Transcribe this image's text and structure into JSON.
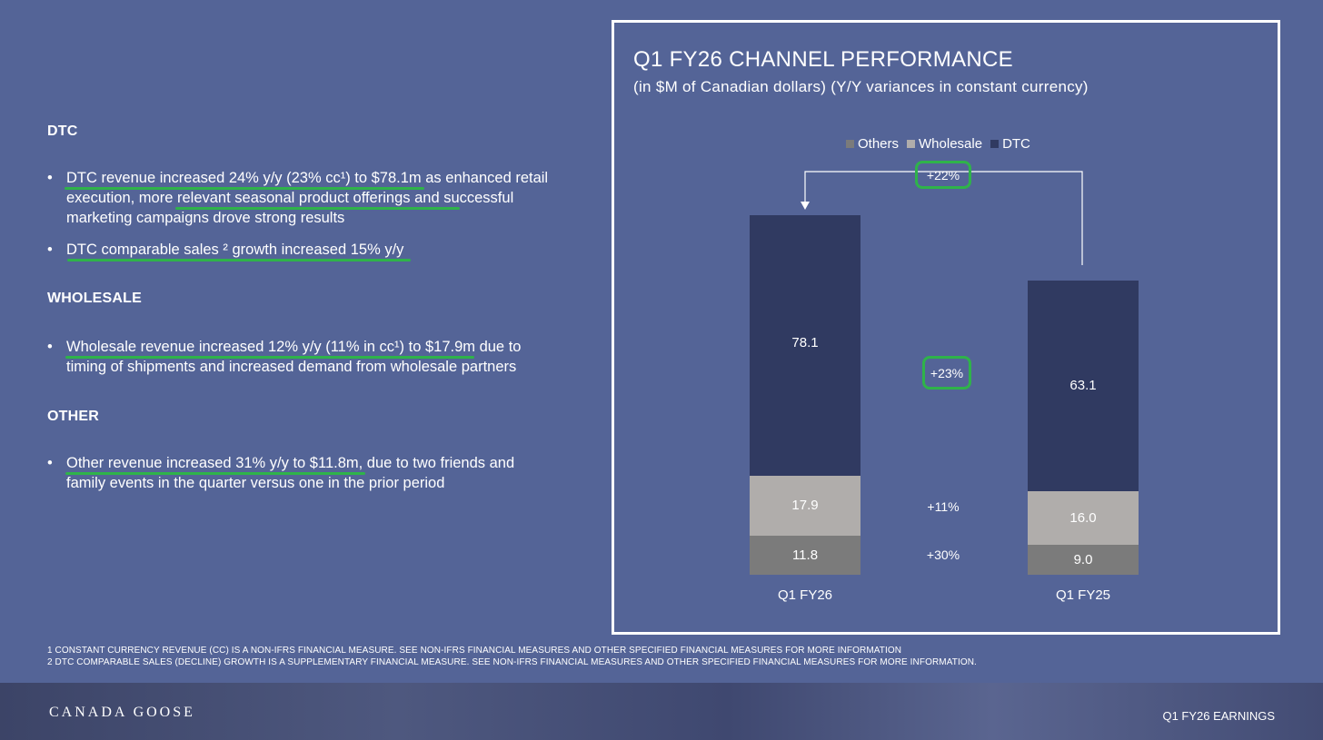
{
  "left": {
    "dtc_heading": "DTC",
    "dtc_bullets": [
      "DTC revenue increased 24% y/y (23% cc¹) to $78.1m as enhanced retail execution, more relevant seasonal product offerings and successful marketing campaigns drove strong results",
      "DTC comparable sales ² growth increased 15% y/y"
    ],
    "wholesale_heading": "WHOLESALE",
    "wholesale_bullets": [
      "Wholesale revenue increased 12% y/y (11% in cc¹) to $17.9m due to timing of shipments and increased demand from wholesale partners"
    ],
    "other_heading": "OTHER",
    "other_bullets": [
      "Other revenue increased 31% y/y to $11.8m, due to two friends and family events in the quarter versus one in the prior period"
    ],
    "bullet_char": "•"
  },
  "panel": {
    "title": "Q1 FY26 CHANNEL PERFORMANCE",
    "subtitle": "(in $M of Canadian dollars) (Y/Y variances in constant currency)"
  },
  "chart_data": {
    "type": "bar",
    "stacked": true,
    "title": "Q1 FY26 CHANNEL PERFORMANCE",
    "categories": [
      "Q1 FY26",
      "Q1 FY25"
    ],
    "series": [
      {
        "name": "Others",
        "values": [
          11.8,
          9.0
        ],
        "color": "#7b7b7b"
      },
      {
        "name": "Wholesale",
        "values": [
          17.9,
          16.0
        ],
        "color": "#b0adab"
      },
      {
        "name": "DTC",
        "values": [
          78.1,
          63.1
        ],
        "color": "#303a61"
      }
    ],
    "variances": {
      "total": "+22%",
      "DTC": "+23%",
      "Wholesale": "+11%",
      "Others": "+30%"
    },
    "legend_position": "top-center"
  },
  "footnotes": [
    "1 CONSTANT CURRENCY REVENUE (CC) IS A NON-IFRS FINANCIAL MEASURE. SEE NON-IFRS FINANCIAL MEASURES AND OTHER SPECIFIED FINANCIAL MEASURES FOR MORE INFORMATION",
    "2 DTC COMPARABLE SALES (DECLINE) GROWTH IS A SUPPLEMENTARY FINANCIAL MEASURE. SEE NON-IFRS FINANCIAL MEASURES AND OTHER SPECIFIED FINANCIAL MEASURES FOR MORE INFORMATION."
  ],
  "footer": {
    "brand": "CANADA GOOSE",
    "earnings_label": "Q1 FY26 EARNINGS"
  },
  "colors": {
    "background": "#546497",
    "highlight": "#2fb34a"
  }
}
